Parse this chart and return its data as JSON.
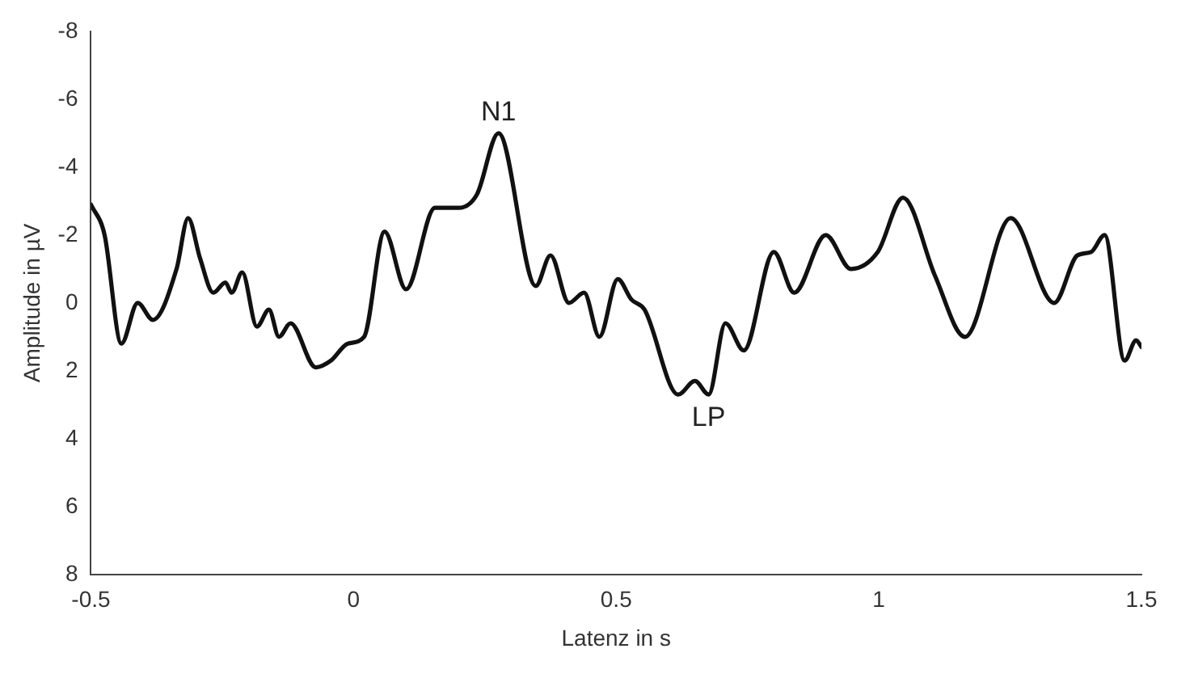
{
  "chart_data": {
    "type": "line",
    "xlabel": "Latenz in s",
    "ylabel": "Amplitude in µV",
    "x": [
      -0.5,
      -0.474,
      -0.442,
      -0.411,
      -0.382,
      -0.337,
      -0.315,
      -0.292,
      -0.267,
      -0.244,
      -0.232,
      -0.212,
      -0.184,
      -0.161,
      -0.142,
      -0.12,
      -0.072,
      -0.043,
      -0.011,
      0.02,
      0.059,
      0.1,
      0.155,
      0.2,
      0.235,
      0.276,
      0.347,
      0.375,
      0.41,
      0.439,
      0.468,
      0.503,
      0.529,
      0.554,
      0.618,
      0.65,
      0.676,
      0.708,
      0.743,
      0.8,
      0.839,
      0.899,
      0.947,
      0.998,
      1.046,
      1.107,
      1.164,
      1.251,
      1.334,
      1.378,
      1.404,
      1.43,
      1.468,
      1.49,
      1.5
    ],
    "series": [
      {
        "color": "#111111",
        "values": [
          -2.9,
          -2.0,
          1.2,
          0,
          0.5,
          -1.0,
          -2.5,
          -1.3,
          -0.3,
          -0.6,
          -0.3,
          -0.9,
          0.7,
          0.2,
          1.0,
          0.6,
          1.9,
          1.7,
          1.2,
          1.0,
          -2.1,
          -0.4,
          -2.8,
          -2.8,
          -3.2,
          -5.0,
          -0.5,
          -1.4,
          0,
          -0.3,
          1.0,
          -0.7,
          -0.1,
          0.2,
          2.7,
          2.3,
          2.7,
          0.6,
          1.4,
          -1.5,
          -0.3,
          -2.0,
          -1.0,
          -1.5,
          -3.1,
          -0.8,
          1.0,
          -2.5,
          0,
          -1.4,
          -1.5,
          -2.0,
          1.7,
          1.1,
          1.3
        ]
      }
    ],
    "xlim": [
      -0.5,
      1.5
    ],
    "xticks": [
      -0.5,
      0,
      0.5,
      1,
      1.5
    ],
    "ylim": [
      8,
      -8
    ],
    "yticks": [
      -8,
      -6,
      -4,
      -2,
      0,
      2,
      4,
      6,
      8
    ],
    "annotations": [
      {
        "text": "N1",
        "x": 0.276,
        "y": -5.0
      },
      {
        "text": "LP",
        "x": 0.676,
        "y": 2.7
      }
    ],
    "grid": false,
    "legend": false,
    "marker": "none",
    "line_style": "solid"
  }
}
